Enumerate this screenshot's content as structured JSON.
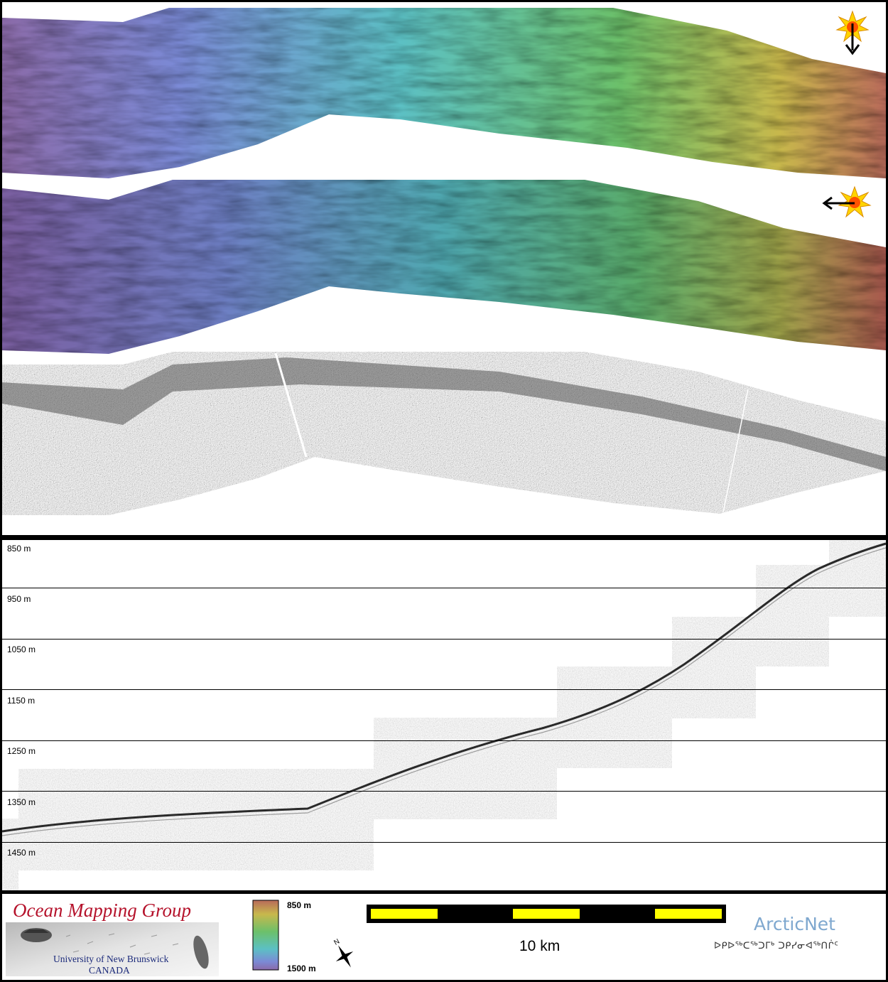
{
  "depth_scale": {
    "labels": [
      "850 m",
      "950 m",
      "1050 m",
      "1150 m",
      "1250 m",
      "1350 m",
      "1450 m"
    ]
  },
  "legend": {
    "top_label": "850 m",
    "bottom_label": "1500 m"
  },
  "scale_bar": {
    "label": "10 km"
  },
  "logos": {
    "omg_title": "Ocean Mapping Group",
    "omg_university": "University of New Brunswick",
    "omg_country": "CANADA",
    "arcticnet_title": "ArcticNet",
    "arcticnet_syllabics": "ᐅᑭᐅᖅᑕᖅᑐᒥᒃ ᑐᑭᓯᓂᐊᖅᑎᒌᑦ"
  },
  "icons": {
    "sun_north": "sun-illumination-icon",
    "sun_east": "sun-illumination-icon",
    "north_arrow": "north-arrow-icon"
  },
  "colors": {
    "strip_gradient": [
      "#8a6aa8",
      "#7b8ad6",
      "#5cc0c4",
      "#6cc06a",
      "#c8b84c",
      "#b86a5a"
    ],
    "scale_bar_fill": "#ffff00",
    "omg_red": "#b5122b",
    "arcticnet_blue": "#7fa8cf"
  }
}
